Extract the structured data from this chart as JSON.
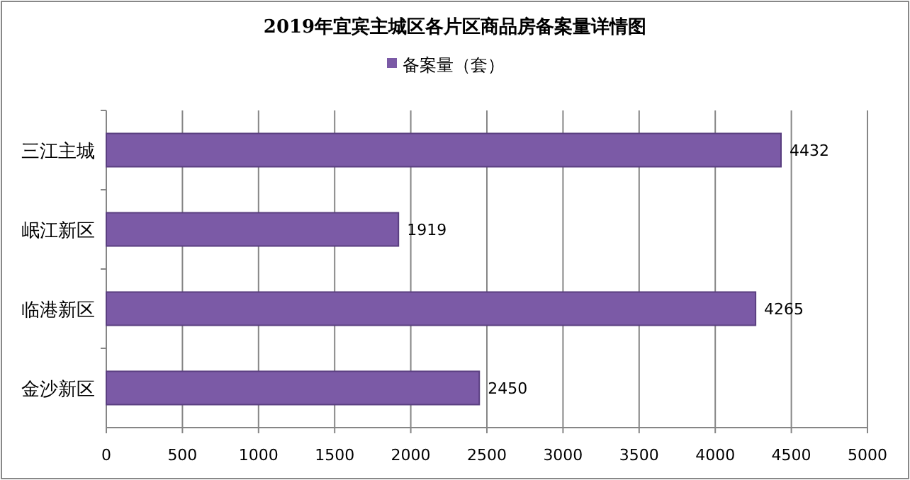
{
  "chart_data": {
    "type": "bar",
    "orientation": "horizontal",
    "title": "2019年宜宾主城区各片区商品房备案量详情图",
    "categories": [
      "三江主城",
      "岷江新区",
      "临港新区",
      "金沙新区"
    ],
    "series": [
      {
        "name": "备案量（套）",
        "color": "#7b5aa6",
        "values": [
          4432,
          1919,
          4265,
          2450
        ]
      }
    ],
    "xlim": [
      0,
      5000
    ],
    "xticks": [
      0,
      500,
      1000,
      1500,
      2000,
      2500,
      3000,
      3500,
      4000,
      4500,
      5000
    ],
    "grid": "x",
    "legend": "top",
    "data_labels": true
  }
}
